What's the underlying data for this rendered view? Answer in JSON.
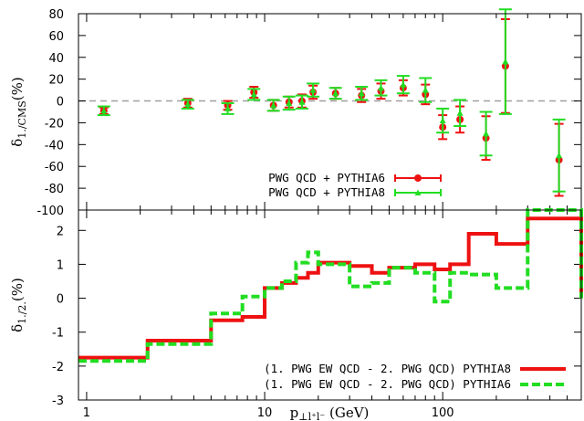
{
  "colors": {
    "red": "#ee1111",
    "green": "#22dd22",
    "zero_line": "#a0a0a0",
    "frame": "#000000"
  },
  "chart_data": [
    {
      "type": "scatter",
      "scale": {
        "x": "log"
      },
      "xlim": [
        0.9,
        600
      ],
      "ylim": [
        -100,
        80
      ],
      "yticks": [
        -100,
        -80,
        -60,
        -40,
        -20,
        0,
        20,
        40,
        60,
        80
      ],
      "ytick_labels": [
        "-100",
        "-80",
        "-60",
        "-40",
        "-20",
        "0",
        "20",
        "40",
        "60",
        "80"
      ],
      "ylabel_main": "δ",
      "ylabel_sub": "1./CMS",
      "ylabel_suffix": "(%)",
      "reference_line": {
        "y": 0,
        "style": "dashed"
      },
      "legend_position": "lower-right",
      "series": [
        {
          "name": "PWG QCD + PYTHIA6",
          "color": "#ee1111",
          "marker": "circle",
          "points": [
            {
              "x": 1.25,
              "y": -9,
              "err": 3
            },
            {
              "x": 3.7,
              "y": -2,
              "err": 4
            },
            {
              "x": 6.2,
              "y": -4,
              "err": 4
            },
            {
              "x": 8.7,
              "y": 8,
              "err": 5
            },
            {
              "x": 11.2,
              "y": -4,
              "err": 5
            },
            {
              "x": 13.7,
              "y": -1,
              "err": 5
            },
            {
              "x": 16.2,
              "y": 0,
              "err": 6
            },
            {
              "x": 18.7,
              "y": 8,
              "err": 6
            },
            {
              "x": 25,
              "y": 7,
              "err": 5
            },
            {
              "x": 35,
              "y": 5,
              "err": 6
            },
            {
              "x": 45,
              "y": 9,
              "err": 7
            },
            {
              "x": 60,
              "y": 12,
              "err": 7
            },
            {
              "x": 80,
              "y": 6,
              "err": 9
            },
            {
              "x": 100,
              "y": -24,
              "err": 11
            },
            {
              "x": 125,
              "y": -17,
              "err": 12
            },
            {
              "x": 175,
              "y": -34,
              "err": 20
            },
            {
              "x": 225,
              "y": 32,
              "err": 43
            },
            {
              "x": 450,
              "y": -54,
              "err": 33
            }
          ]
        },
        {
          "name": "PWG QCD + PYTHIA8",
          "color": "#22dd22",
          "marker": "triangle",
          "points": [
            {
              "x": 1.25,
              "y": -9,
              "err": 4
            },
            {
              "x": 3.7,
              "y": -3,
              "err": 4
            },
            {
              "x": 6.2,
              "y": -7,
              "err": 5
            },
            {
              "x": 8.7,
              "y": 6,
              "err": 5
            },
            {
              "x": 11.2,
              "y": -4,
              "err": 5
            },
            {
              "x": 13.7,
              "y": -2,
              "err": 6
            },
            {
              "x": 16.2,
              "y": -1,
              "err": 6
            },
            {
              "x": 18.7,
              "y": 10,
              "err": 6
            },
            {
              "x": 25,
              "y": 7,
              "err": 5
            },
            {
              "x": 35,
              "y": 7,
              "err": 6
            },
            {
              "x": 45,
              "y": 12,
              "err": 7
            },
            {
              "x": 60,
              "y": 15,
              "err": 8
            },
            {
              "x": 80,
              "y": 10,
              "err": 11
            },
            {
              "x": 100,
              "y": -18,
              "err": 11
            },
            {
              "x": 125,
              "y": -11,
              "err": 12
            },
            {
              "x": 175,
              "y": -30,
              "err": 20
            },
            {
              "x": 225,
              "y": 36,
              "err": 48
            },
            {
              "x": 450,
              "y": -50,
              "err": 33
            }
          ]
        }
      ]
    },
    {
      "type": "line",
      "step": true,
      "scale": {
        "x": "log"
      },
      "xlim": [
        0.9,
        600
      ],
      "ylim": [
        -3,
        2.6
      ],
      "yticks": [
        -3,
        -2,
        -1,
        0,
        1,
        2
      ],
      "ytick_labels": [
        "-3",
        "-2",
        "-1",
        "0",
        "1",
        "2"
      ],
      "xticks": [
        1,
        10,
        100
      ],
      "xtick_labels": [
        "1",
        "10",
        "100"
      ],
      "ylabel_main": "δ",
      "ylabel_sub": "1./2.",
      "ylabel_suffix": "(%)",
      "xlabel_main": "p",
      "xlabel_sub": "⊥l⁺l⁻",
      "xlabel_suffix": " (GeV)",
      "legend_position": "lower-right",
      "bin_edges": [
        0.9,
        2.2,
        5,
        7.5,
        10,
        12.5,
        15,
        17.5,
        20,
        30,
        40,
        50,
        70,
        90,
        110,
        140,
        200,
        300,
        600
      ],
      "series": [
        {
          "name": "(1. PWG EW QCD - 2. PWG QCD) PYTHIA8",
          "color": "#ee1111",
          "style": "solid",
          "values": [
            -1.75,
            -1.25,
            -0.65,
            -0.55,
            0.3,
            0.45,
            0.6,
            0.75,
            1.05,
            0.95,
            0.75,
            0.9,
            1.0,
            0.85,
            1.0,
            1.9,
            1.6,
            2.35
          ]
        },
        {
          "name": "(1. PWG EW QCD - 2. PWG QCD) PYTHIA6",
          "color": "#22dd22",
          "style": "dashed",
          "values": [
            -1.85,
            -1.35,
            -0.45,
            0.05,
            0.3,
            0.5,
            1.05,
            1.35,
            1.0,
            0.35,
            0.45,
            0.9,
            0.75,
            -0.1,
            0.75,
            0.7,
            0.3,
            2.6
          ]
        }
      ]
    }
  ]
}
